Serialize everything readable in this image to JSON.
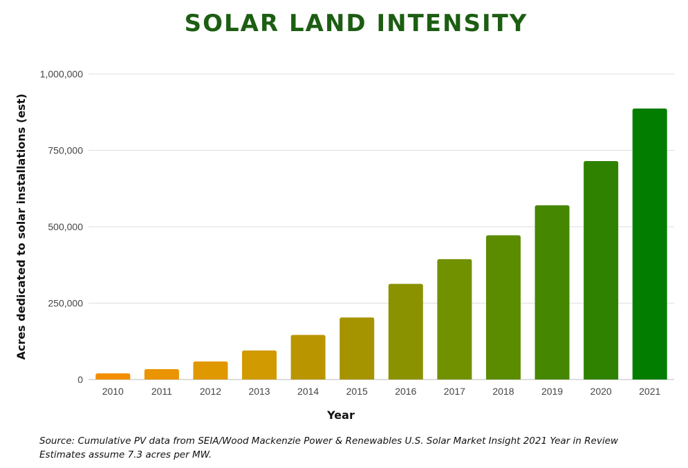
{
  "chart_data": {
    "type": "bar",
    "title": "SOLAR LAND INTENSITY",
    "xlabel": "Year",
    "ylabel": "Acres dedicated to solar installations  (est)",
    "categories": [
      "2010",
      "2011",
      "2012",
      "2013",
      "2014",
      "2015",
      "2016",
      "2017",
      "2018",
      "2019",
      "2020",
      "2021"
    ],
    "values": [
      20000,
      34000,
      59000,
      95000,
      146000,
      203000,
      313000,
      394000,
      472000,
      570000,
      715000,
      887000
    ],
    "colors": [
      "#f28e00",
      "#e99400",
      "#e09800",
      "#d09a00",
      "#b99600",
      "#a59400",
      "#8b9200",
      "#719100",
      "#5b8c00",
      "#458700",
      "#2f8200",
      "#037d00"
    ],
    "ylim": [
      0,
      1000000
    ],
    "yticks": [
      0,
      250000,
      500000,
      750000,
      1000000
    ],
    "ytick_labels": [
      "0",
      "250,000",
      "500,000",
      "750,000",
      "1,000,000"
    ],
    "grid": true,
    "legend": "none"
  },
  "source": {
    "line1": "Source: Cumulative PV data from SEIA/Wood Mackenzie Power & Renewables U.S. Solar Market Insight 2021 Year in Review",
    "line2": "Estimates assume 7.3 acres per MW."
  },
  "colors": {
    "title": "#1c5e12",
    "grid": "#dddddd"
  }
}
